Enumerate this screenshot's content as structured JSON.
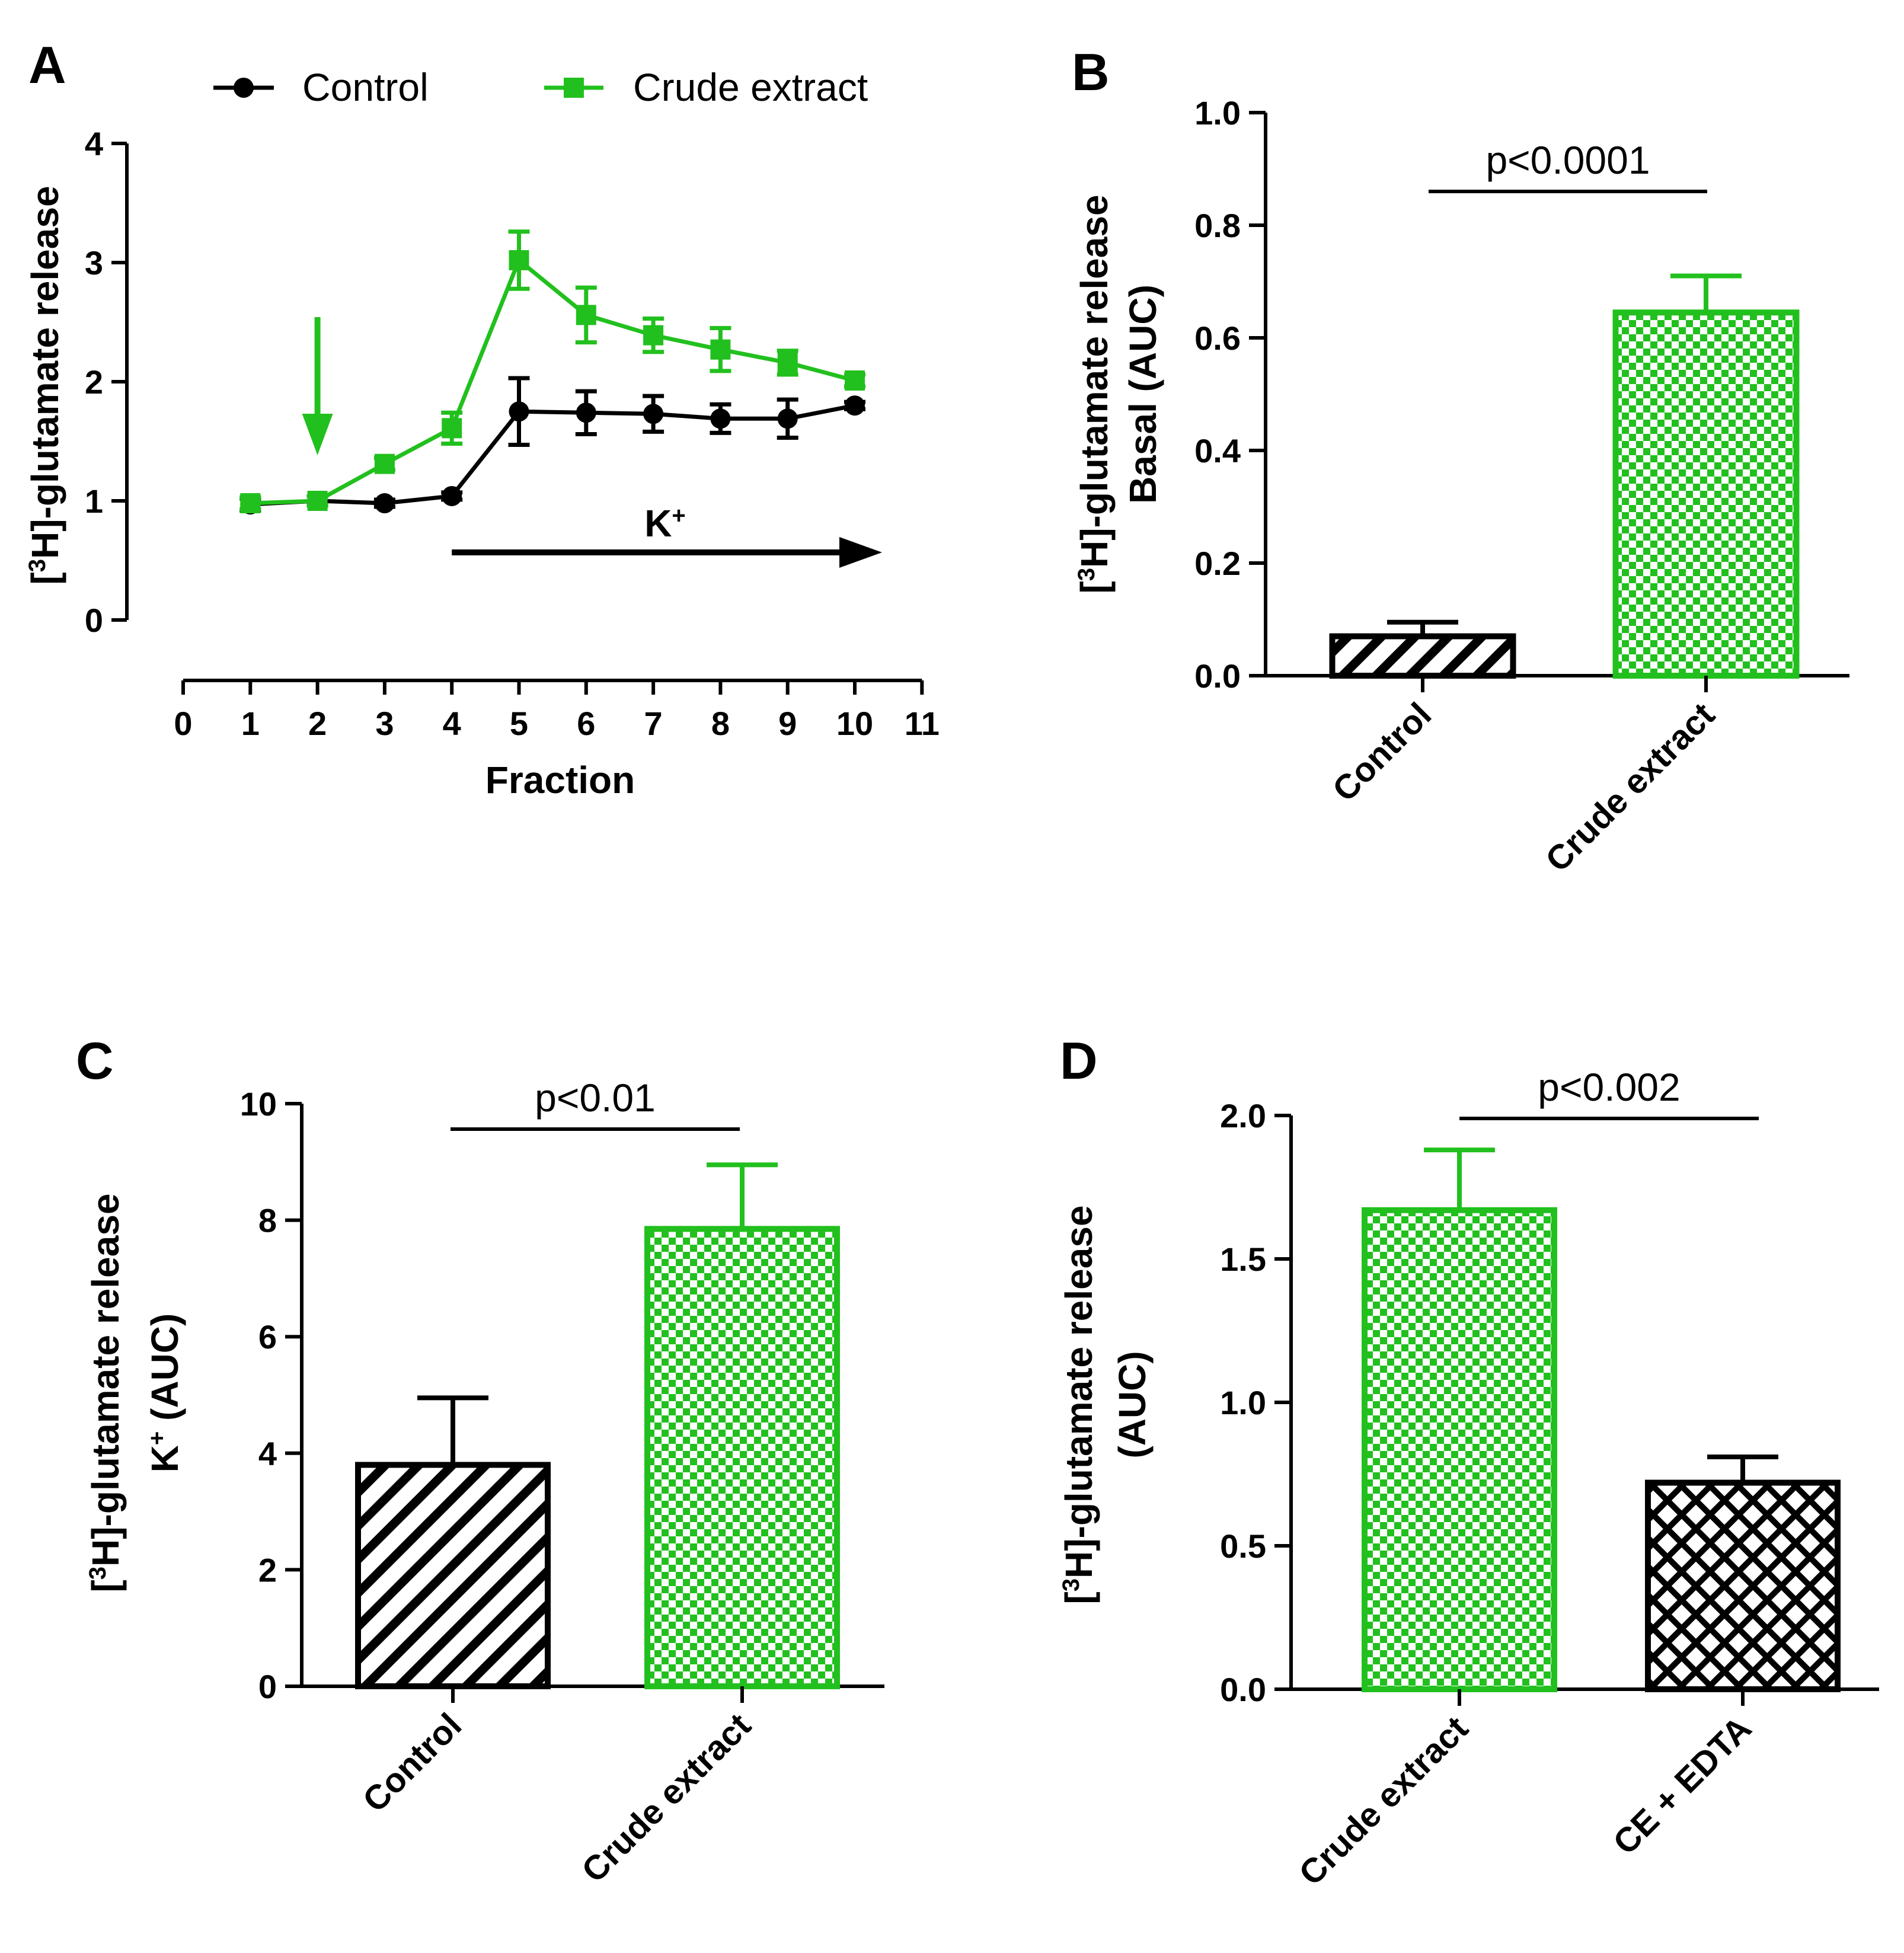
{
  "colors": {
    "control": "#000000",
    "crude": "#22c01e"
  },
  "panels": [
    {
      "id": "A",
      "label": "A",
      "chart_data": {
        "type": "line",
        "xlabel": "Fraction",
        "ylabel": [
          "[",
          "3",
          "H]-glutamate release"
        ],
        "xlim": [
          0,
          11
        ],
        "ylim": [
          0,
          4
        ],
        "xticks": [
          0,
          1,
          2,
          3,
          4,
          5,
          6,
          7,
          8,
          9,
          10,
          11
        ],
        "yticks": [
          0,
          1,
          2,
          3,
          4
        ],
        "series": [
          {
            "name": "Control",
            "color": "#000000",
            "marker": "circle",
            "x": [
              1,
              2,
              3,
              4,
              5,
              6,
              7,
              8,
              9,
              10
            ],
            "y": [
              0.97,
              1.0,
              0.98,
              1.04,
              1.75,
              1.74,
              1.73,
              1.69,
              1.69,
              1.8
            ],
            "err": [
              0.05,
              0.04,
              0.03,
              0.03,
              0.28,
              0.18,
              0.15,
              0.12,
              0.16,
              0.03
            ]
          },
          {
            "name": "Crude extract",
            "color": "#22c01e",
            "marker": "square",
            "x": [
              1,
              2,
              3,
              4,
              5,
              6,
              7,
              8,
              9,
              10
            ],
            "y": [
              0.98,
              1.0,
              1.31,
              1.61,
              3.02,
              2.56,
              2.39,
              2.27,
              2.16,
              2.01
            ],
            "err": [
              0.05,
              0.04,
              0.05,
              0.13,
              0.24,
              0.23,
              0.14,
              0.18,
              0.1,
              0.05
            ]
          }
        ],
        "annotations": {
          "k_label": [
            "K",
            "+"
          ],
          "green_arrow_x": 2,
          "k_arrow_from": 4,
          "k_arrow_to": 10.3
        }
      }
    },
    {
      "id": "B",
      "label": "B",
      "chart_data": {
        "type": "bar",
        "categories": [
          "Control",
          "Crude extract"
        ],
        "values": [
          0.07,
          0.645
        ],
        "err": [
          0.025,
          0.065
        ],
        "ylabel_lines": [
          [
            "[",
            "3",
            "H]-glutamate release"
          ],
          [
            "Basal (AUC)"
          ]
        ],
        "ylim": [
          0,
          1.0
        ],
        "yticks": [
          "0.0",
          "0.2",
          "0.4",
          "0.6",
          "0.8",
          "1.0"
        ],
        "ytick_values": [
          0,
          0.2,
          0.4,
          0.6,
          0.8,
          1.0
        ],
        "patterns": [
          "stripe-black",
          "check-green"
        ],
        "significance": "p<0.0001"
      }
    },
    {
      "id": "C",
      "label": "C",
      "chart_data": {
        "type": "bar",
        "categories": [
          "Control",
          "Crude extract"
        ],
        "values": [
          3.8,
          7.85
        ],
        "err": [
          1.15,
          1.1
        ],
        "ylabel_lines": [
          [
            "[",
            "3",
            "H]-glutamate release"
          ],
          [
            "K",
            "+",
            " (AUC)"
          ]
        ],
        "ylim": [
          0,
          10
        ],
        "yticks": [
          "0",
          "2",
          "4",
          "6",
          "8",
          "10"
        ],
        "ytick_values": [
          0,
          2,
          4,
          6,
          8,
          10
        ],
        "patterns": [
          "stripe-black",
          "check-green"
        ],
        "significance": "p<0.01"
      }
    },
    {
      "id": "D",
      "label": "D",
      "chart_data": {
        "type": "bar",
        "categories": [
          "Crude extract",
          "CE + EDTA"
        ],
        "values": [
          1.67,
          0.72
        ],
        "err": [
          0.21,
          0.09
        ],
        "ylabel_lines": [
          [
            "[",
            "3",
            "H]-glutamate release"
          ],
          [
            "(AUC)"
          ]
        ],
        "ylim": [
          0,
          2.0
        ],
        "yticks": [
          "0.0",
          "0.5",
          "1.0",
          "1.5",
          "2.0"
        ],
        "ytick_values": [
          0,
          0.5,
          1.0,
          1.5,
          2.0
        ],
        "patterns": [
          "check-green",
          "cross-black"
        ],
        "significance": "p<0.002"
      }
    }
  ]
}
